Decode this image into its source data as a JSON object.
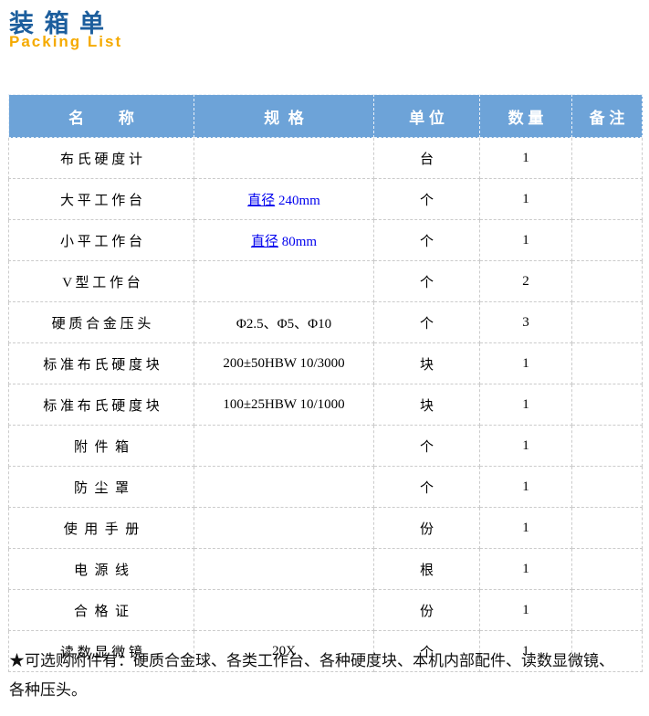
{
  "page": {
    "title": "装 箱 单",
    "subtitle": "Packing List"
  },
  "colors": {
    "title_blue": "#1c5e9d",
    "subtitle_orange": "#f5aa00",
    "header_bg": "#6da3d8",
    "row_alt_blue": "#e9f1f9",
    "row_alt_cyan": "#e2f1f7",
    "link_blue": "#0000ee",
    "grid_border": "#cbcbcb"
  },
  "table": {
    "headers": [
      "名        称",
      "规  格",
      "单 位",
      "数 量",
      "备 注"
    ],
    "rows": [
      {
        "name": "布 氏 硬 度 计",
        "spec": "",
        "spec_is_link": false,
        "unit": "台",
        "qty": "1",
        "note": "",
        "shade": "white"
      },
      {
        "name": "大 平 工 作 台",
        "spec": "直径 240mm",
        "spec_is_link": true,
        "unit": "个",
        "qty": "1",
        "note": "",
        "shade": "blue"
      },
      {
        "name": "小 平 工 作 台",
        "spec": "直径 80mm",
        "spec_is_link": true,
        "unit": "个",
        "qty": "1",
        "note": "",
        "shade": "white"
      },
      {
        "name": "V 型 工 作 台",
        "spec": "",
        "spec_is_link": false,
        "unit": "个",
        "qty": "2",
        "note": "",
        "shade": "blue"
      },
      {
        "name": "硬 质 合 金 压 头",
        "spec": "Φ2.5、Φ5、Φ10",
        "spec_is_link": false,
        "unit": "个",
        "qty": "3",
        "note": "",
        "shade": "white"
      },
      {
        "name": "标 准 布 氏 硬 度 块",
        "spec": "200±50HBW 10/3000",
        "spec_is_link": false,
        "unit": "块",
        "qty": "1",
        "note": "",
        "shade": "blue"
      },
      {
        "name": "标 准 布 氏 硬 度 块",
        "spec": "100±25HBW 10/1000",
        "spec_is_link": false,
        "unit": "块",
        "qty": "1",
        "note": "",
        "shade": "white"
      },
      {
        "name": "附  件  箱",
        "spec": "",
        "spec_is_link": false,
        "unit": "个",
        "qty": "1",
        "note": "",
        "shade": "blue"
      },
      {
        "name": "防  尘  罩",
        "spec": "",
        "spec_is_link": false,
        "unit": "个",
        "qty": "1",
        "note": "",
        "shade": "white"
      },
      {
        "name": "使  用  手  册",
        "spec": "",
        "spec_is_link": false,
        "unit": "份",
        "qty": "1",
        "note": "",
        "shade": "blue"
      },
      {
        "name": "电  源  线",
        "spec": "",
        "spec_is_link": false,
        "unit": "根",
        "qty": "1",
        "note": "",
        "shade": "white"
      },
      {
        "name": "合  格  证",
        "spec": "",
        "spec_is_link": false,
        "unit": "份",
        "qty": "1",
        "note": "",
        "shade": "cyan"
      },
      {
        "name": "读 数 显 微 镜",
        "spec": "20X",
        "spec_is_link": false,
        "unit": "个",
        "qty": "1",
        "note": "",
        "shade": "white"
      }
    ]
  },
  "footer": {
    "note": "★可选购附件有：硬质合金球、各类工作台、各种硬度块、本机内部配件、读数显微镜、各种压头。"
  }
}
